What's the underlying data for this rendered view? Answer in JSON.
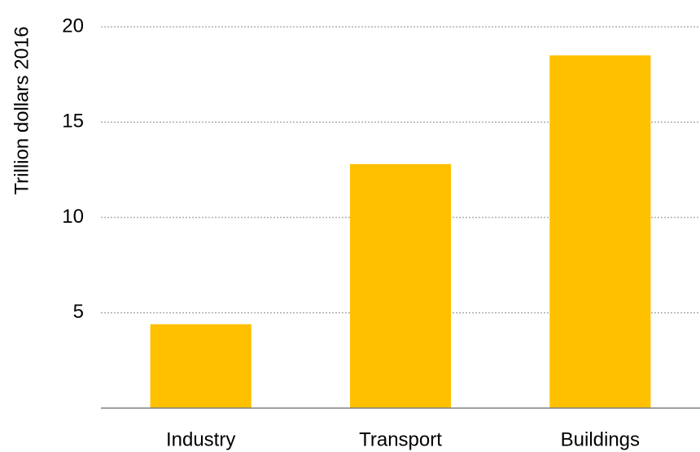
{
  "chart_data": {
    "type": "bar",
    "y_label": "Trillion dollars 2016",
    "categories": [
      "Industry",
      "Transport",
      "Buildings"
    ],
    "values": [
      4.4,
      12.8,
      18.5
    ],
    "color": "#ffc000",
    "ylim": [
      0,
      20
    ],
    "yticks": [
      5,
      10,
      15,
      20
    ],
    "grid": true
  }
}
